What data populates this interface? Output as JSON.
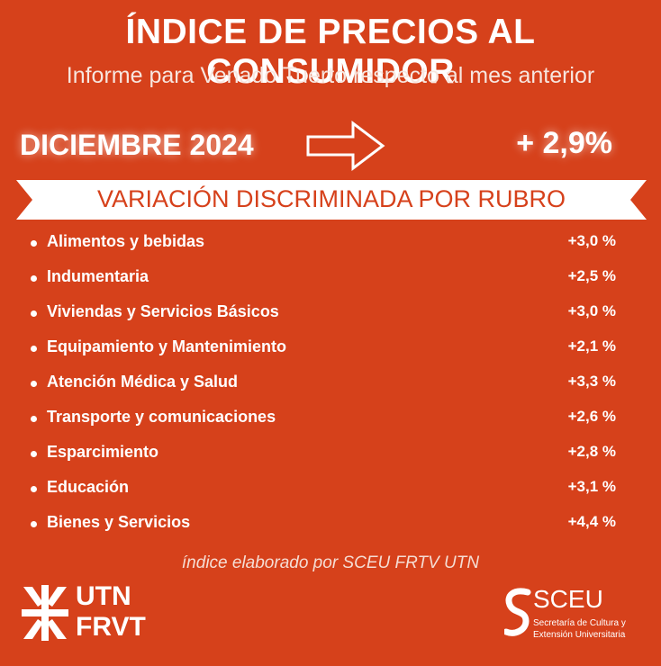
{
  "header": {
    "title": "ÍNDICE DE PRECIOS AL CONSUMIDOR",
    "subtitle": "Informe para Venado Tuerto respecto al mes anterior"
  },
  "summary": {
    "month": "DICIEMBRE 2024",
    "total": "+ 2,9%",
    "arrow_icon": "right-arrow-icon"
  },
  "banner": {
    "text": "VARIACIÓN DISCRIMINADA POR RUBRO"
  },
  "items": [
    {
      "label": "Alimentos y bebidas",
      "value": "+3,0 %"
    },
    {
      "label": "Indumentaria",
      "value": "+2,5 %"
    },
    {
      "label": "Viviendas y Servicios Básicos",
      "value": "+3,0 %"
    },
    {
      "label": "Equipamiento y Mantenimiento",
      "value": "+2,1 %"
    },
    {
      "label": "Atención Médica y Salud",
      "value": "+3,3 %"
    },
    {
      "label": "Transporte y comunicaciones",
      "value": "+2,6 %"
    },
    {
      "label": "Esparcimiento",
      "value": "+2,8 %"
    },
    {
      "label": "Educación",
      "value": "+3,1 %"
    },
    {
      "label": "Bienes y Servicios",
      "value": "+4,4 %"
    }
  ],
  "footer": {
    "credit": "índice elaborado por SCEU FRTV UTN"
  },
  "logos": {
    "utn_top": "UTN",
    "utn_bottom": "FRVT",
    "sceu_name": "SCEU",
    "sceu_line1": "Secretaría de Cultura y",
    "sceu_line2": "Extensión Universitaria"
  },
  "colors": {
    "background": "#d6411b",
    "text": "#ffffff",
    "banner": "#ffffff"
  }
}
